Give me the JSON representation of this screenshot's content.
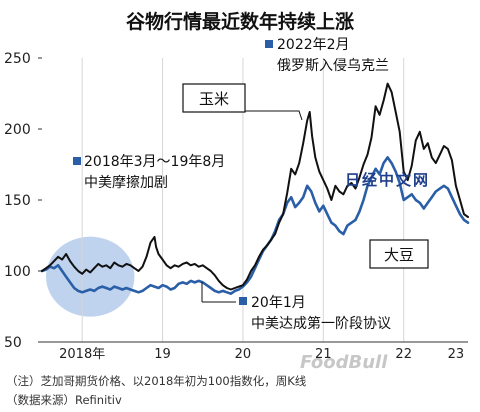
{
  "chart_data": {
    "type": "line",
    "title": "谷物行情最近数年持续上涨",
    "xlabel": "",
    "ylabel": "",
    "ylim": [
      50,
      250
    ],
    "yticks": [
      50,
      100,
      150,
      200,
      250
    ],
    "xlim": [
      2018.0,
      2023.3
    ],
    "xticks": [
      {
        "x": 2018.0,
        "label": "2018年"
      },
      {
        "x": 2019.0,
        "label": "19"
      },
      {
        "x": 2020.0,
        "label": "20"
      },
      {
        "x": 2021.0,
        "label": "21"
      },
      {
        "x": 2022.0,
        "label": "22"
      },
      {
        "x": 2023.0,
        "label": "23"
      }
    ],
    "grid": "vertical",
    "series": [
      {
        "name": "玉米",
        "color": "#111111",
        "points": [
          [
            2018.0,
            100
          ],
          [
            2018.05,
            102
          ],
          [
            2018.1,
            104
          ],
          [
            2018.15,
            107
          ],
          [
            2018.2,
            110
          ],
          [
            2018.25,
            108
          ],
          [
            2018.3,
            112
          ],
          [
            2018.35,
            107
          ],
          [
            2018.4,
            103
          ],
          [
            2018.45,
            100
          ],
          [
            2018.5,
            98
          ],
          [
            2018.55,
            101
          ],
          [
            2018.6,
            99
          ],
          [
            2018.65,
            102
          ],
          [
            2018.7,
            105
          ],
          [
            2018.75,
            103
          ],
          [
            2018.8,
            104
          ],
          [
            2018.85,
            102
          ],
          [
            2018.9,
            106
          ],
          [
            2018.95,
            104
          ],
          [
            2019.0,
            103
          ],
          [
            2019.05,
            105
          ],
          [
            2019.1,
            104
          ],
          [
            2019.15,
            102
          ],
          [
            2019.2,
            100
          ],
          [
            2019.25,
            103
          ],
          [
            2019.3,
            110
          ],
          [
            2019.35,
            120
          ],
          [
            2019.4,
            124
          ],
          [
            2019.42,
            117
          ],
          [
            2019.45,
            112
          ],
          [
            2019.5,
            108
          ],
          [
            2019.55,
            104
          ],
          [
            2019.6,
            102
          ],
          [
            2019.65,
            104
          ],
          [
            2019.7,
            103
          ],
          [
            2019.75,
            105
          ],
          [
            2019.8,
            106
          ],
          [
            2019.85,
            104
          ],
          [
            2019.9,
            105
          ],
          [
            2019.95,
            103
          ],
          [
            2020.0,
            104
          ],
          [
            2020.05,
            102
          ],
          [
            2020.1,
            100
          ],
          [
            2020.15,
            97
          ],
          [
            2020.2,
            93
          ],
          [
            2020.25,
            90
          ],
          [
            2020.3,
            88
          ],
          [
            2020.35,
            87
          ],
          [
            2020.4,
            88
          ],
          [
            2020.45,
            89
          ],
          [
            2020.5,
            90
          ],
          [
            2020.55,
            94
          ],
          [
            2020.6,
            100
          ],
          [
            2020.65,
            104
          ],
          [
            2020.7,
            110
          ],
          [
            2020.75,
            115
          ],
          [
            2020.8,
            118
          ],
          [
            2020.85,
            122
          ],
          [
            2020.9,
            126
          ],
          [
            2020.95,
            134
          ],
          [
            2021.0,
            140
          ],
          [
            2021.05,
            155
          ],
          [
            2021.1,
            172
          ],
          [
            2021.15,
            168
          ],
          [
            2021.2,
            176
          ],
          [
            2021.25,
            190
          ],
          [
            2021.3,
            206
          ],
          [
            2021.33,
            212
          ],
          [
            2021.36,
            195
          ],
          [
            2021.4,
            180
          ],
          [
            2021.45,
            170
          ],
          [
            2021.5,
            164
          ],
          [
            2021.55,
            158
          ],
          [
            2021.6,
            150
          ],
          [
            2021.65,
            160
          ],
          [
            2021.7,
            156
          ],
          [
            2021.75,
            154
          ],
          [
            2021.8,
            160
          ],
          [
            2021.85,
            162
          ],
          [
            2021.9,
            158
          ],
          [
            2021.95,
            166
          ],
          [
            2022.0,
            175
          ],
          [
            2022.05,
            182
          ],
          [
            2022.1,
            194
          ],
          [
            2022.15,
            216
          ],
          [
            2022.2,
            210
          ],
          [
            2022.25,
            220
          ],
          [
            2022.3,
            232
          ],
          [
            2022.35,
            226
          ],
          [
            2022.4,
            212
          ],
          [
            2022.45,
            198
          ],
          [
            2022.5,
            170
          ],
          [
            2022.55,
            164
          ],
          [
            2022.6,
            174
          ],
          [
            2022.65,
            192
          ],
          [
            2022.7,
            198
          ],
          [
            2022.75,
            186
          ],
          [
            2022.8,
            190
          ],
          [
            2022.85,
            180
          ],
          [
            2022.9,
            176
          ],
          [
            2022.95,
            182
          ],
          [
            2023.0,
            188
          ],
          [
            2023.05,
            186
          ],
          [
            2023.1,
            178
          ],
          [
            2023.15,
            160
          ],
          [
            2023.2,
            150
          ],
          [
            2023.25,
            140
          ],
          [
            2023.3,
            138
          ]
        ]
      },
      {
        "name": "大豆",
        "color": "#2a5fa8",
        "points": [
          [
            2018.0,
            100
          ],
          [
            2018.05,
            101
          ],
          [
            2018.1,
            103
          ],
          [
            2018.15,
            102
          ],
          [
            2018.2,
            104
          ],
          [
            2018.25,
            100
          ],
          [
            2018.3,
            96
          ],
          [
            2018.35,
            92
          ],
          [
            2018.4,
            88
          ],
          [
            2018.45,
            86
          ],
          [
            2018.5,
            85
          ],
          [
            2018.55,
            86
          ],
          [
            2018.6,
            87
          ],
          [
            2018.65,
            86
          ],
          [
            2018.7,
            88
          ],
          [
            2018.75,
            89
          ],
          [
            2018.8,
            88
          ],
          [
            2018.85,
            87
          ],
          [
            2018.9,
            89
          ],
          [
            2018.95,
            88
          ],
          [
            2019.0,
            87
          ],
          [
            2019.05,
            88
          ],
          [
            2019.1,
            87
          ],
          [
            2019.15,
            86
          ],
          [
            2019.2,
            85
          ],
          [
            2019.25,
            86
          ],
          [
            2019.3,
            88
          ],
          [
            2019.35,
            90
          ],
          [
            2019.4,
            89
          ],
          [
            2019.45,
            88
          ],
          [
            2019.5,
            90
          ],
          [
            2019.55,
            89
          ],
          [
            2019.6,
            87
          ],
          [
            2019.65,
            88
          ],
          [
            2019.7,
            91
          ],
          [
            2019.75,
            92
          ],
          [
            2019.8,
            91
          ],
          [
            2019.85,
            93
          ],
          [
            2019.9,
            92
          ],
          [
            2019.95,
            93
          ],
          [
            2020.0,
            92
          ],
          [
            2020.05,
            90
          ],
          [
            2020.1,
            88
          ],
          [
            2020.15,
            86
          ],
          [
            2020.2,
            85
          ],
          [
            2020.25,
            86
          ],
          [
            2020.3,
            85
          ],
          [
            2020.35,
            84
          ],
          [
            2020.4,
            86
          ],
          [
            2020.45,
            87
          ],
          [
            2020.5,
            89
          ],
          [
            2020.55,
            92
          ],
          [
            2020.6,
            96
          ],
          [
            2020.65,
            102
          ],
          [
            2020.7,
            108
          ],
          [
            2020.75,
            114
          ],
          [
            2020.8,
            118
          ],
          [
            2020.85,
            122
          ],
          [
            2020.9,
            128
          ],
          [
            2020.95,
            136
          ],
          [
            2021.0,
            140
          ],
          [
            2021.05,
            148
          ],
          [
            2021.1,
            152
          ],
          [
            2021.15,
            145
          ],
          [
            2021.2,
            148
          ],
          [
            2021.25,
            152
          ],
          [
            2021.3,
            160
          ],
          [
            2021.35,
            156
          ],
          [
            2021.4,
            148
          ],
          [
            2021.45,
            142
          ],
          [
            2021.5,
            146
          ],
          [
            2021.55,
            140
          ],
          [
            2021.6,
            134
          ],
          [
            2021.65,
            132
          ],
          [
            2021.7,
            128
          ],
          [
            2021.75,
            126
          ],
          [
            2021.8,
            132
          ],
          [
            2021.85,
            134
          ],
          [
            2021.9,
            136
          ],
          [
            2021.95,
            142
          ],
          [
            2022.0,
            150
          ],
          [
            2022.05,
            160
          ],
          [
            2022.1,
            166
          ],
          [
            2022.15,
            172
          ],
          [
            2022.2,
            168
          ],
          [
            2022.25,
            176
          ],
          [
            2022.3,
            180
          ],
          [
            2022.35,
            176
          ],
          [
            2022.4,
            170
          ],
          [
            2022.45,
            162
          ],
          [
            2022.5,
            150
          ],
          [
            2022.55,
            152
          ],
          [
            2022.6,
            154
          ],
          [
            2022.65,
            150
          ],
          [
            2022.7,
            148
          ],
          [
            2022.75,
            144
          ],
          [
            2022.8,
            148
          ],
          [
            2022.85,
            152
          ],
          [
            2022.9,
            156
          ],
          [
            2022.95,
            158
          ],
          [
            2023.0,
            160
          ],
          [
            2023.05,
            158
          ],
          [
            2023.1,
            152
          ],
          [
            2023.15,
            146
          ],
          [
            2023.2,
            140
          ],
          [
            2023.25,
            136
          ],
          [
            2023.3,
            134
          ]
        ]
      }
    ],
    "annotations": [
      {
        "marker_x": 2018.17,
        "line1": "2018年3月～19年8月",
        "line2": "中美摩擦加剧"
      },
      {
        "marker_x": 2020.0,
        "line1": "20年1月",
        "line2": "中美达成第一阶段协议"
      },
      {
        "marker_x": 2022.15,
        "line1": "2022年2月",
        "line2": "俄罗斯入侵乌克兰"
      }
    ]
  },
  "notes": {
    "line1": "（注）芝加哥期货价格、以2018年初为100指数化，周K线",
    "line2": "（数据来源）Refinitiv"
  },
  "watermarks": {
    "nikkei": "日经中文网",
    "foodbull": "FoodBull"
  },
  "colors": {
    "corn": "#111111",
    "soy": "#2a5fa8",
    "highlight": "#a9c4ea",
    "marker": "#2a5fa8"
  }
}
